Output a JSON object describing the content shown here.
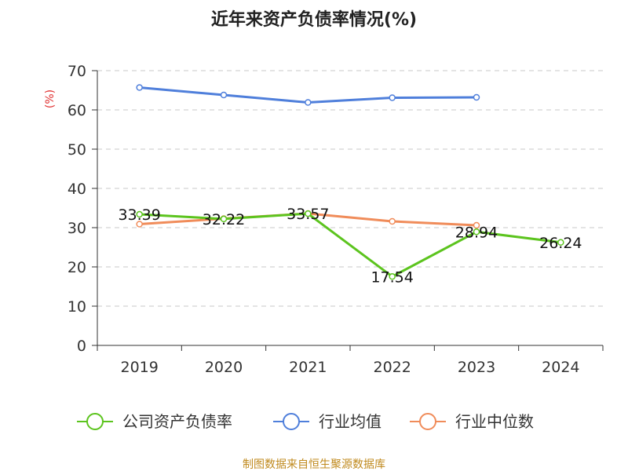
{
  "chart_data": {
    "type": "line",
    "title": "近年来资产负债率情况(%)",
    "y_unit": "(%)",
    "categories": [
      "2019",
      "2020",
      "2021",
      "2022",
      "2023",
      "2024"
    ],
    "ylim": [
      0,
      70
    ],
    "yticks": [
      0,
      10,
      20,
      30,
      40,
      50,
      60,
      70
    ],
    "grid": true,
    "legend_position": "bottom",
    "series": [
      {
        "name": "公司资产负债率",
        "color": "#5cc41e",
        "values": [
          33.39,
          32.22,
          33.57,
          17.54,
          28.94,
          26.24
        ],
        "labels": [
          "33.39",
          "32.22",
          "33.57",
          "17.54",
          "28.94",
          "26.24"
        ]
      },
      {
        "name": "行业均值",
        "color": "#4f7fdb",
        "values": [
          65.7,
          63.8,
          61.9,
          63.1,
          63.2,
          null
        ]
      },
      {
        "name": "行业中位数",
        "color": "#f08c5a",
        "values": [
          30.9,
          32.3,
          33.6,
          31.6,
          30.6,
          null
        ]
      }
    ],
    "source": "制图数据来自恒生聚源数据库"
  }
}
